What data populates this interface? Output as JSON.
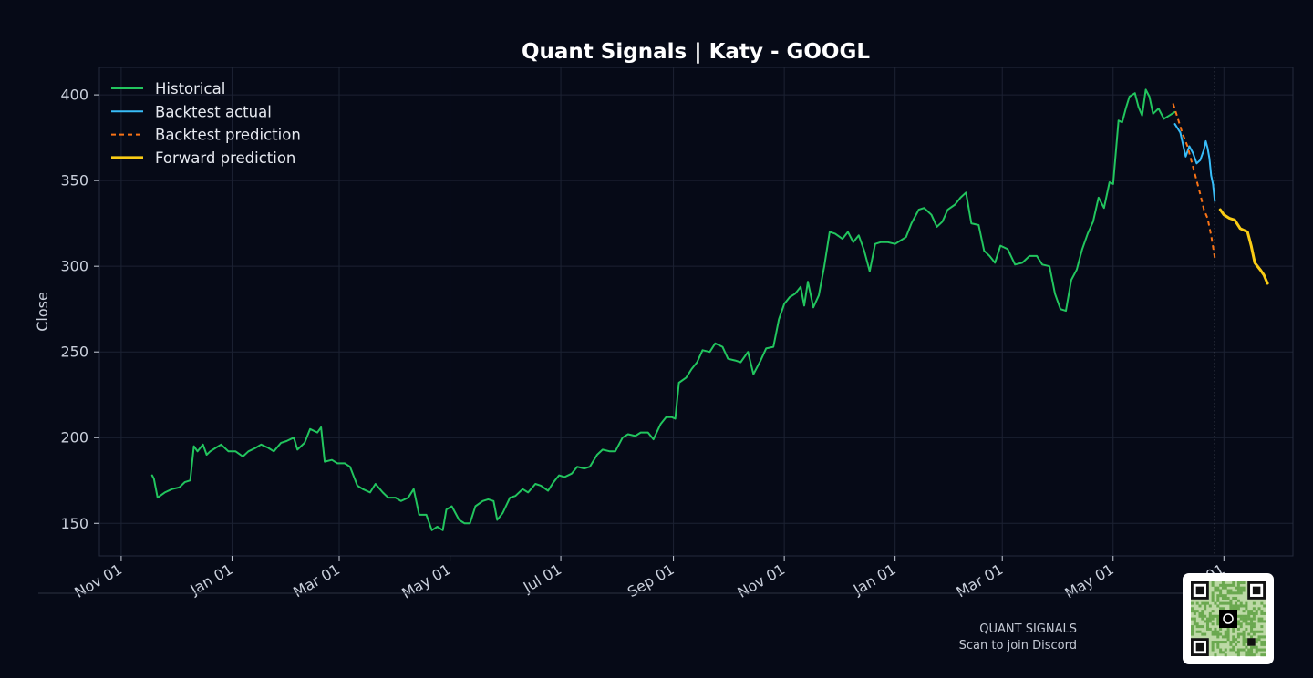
{
  "chart_data": {
    "type": "line",
    "title": "Quant Signals | Katy - GOOGL",
    "xlabel": "",
    "ylabel": "Close",
    "ylim": [
      131,
      416
    ],
    "xlim": [
      "2024-10-20",
      "2026-08-08"
    ],
    "yticks": [
      150,
      200,
      250,
      300,
      350,
      400
    ],
    "xticks": [
      {
        "date": "2024-11-01",
        "label": "Nov 01"
      },
      {
        "date": "2025-01-01",
        "label": "Jan 01"
      },
      {
        "date": "2025-03-01",
        "label": "Mar 01"
      },
      {
        "date": "2025-05-01",
        "label": "May 01"
      },
      {
        "date": "2025-07-01",
        "label": "Jul 01"
      },
      {
        "date": "2025-09-01",
        "label": "Sep 01"
      },
      {
        "date": "2025-11-01",
        "label": "Nov 01"
      },
      {
        "date": "2026-01-01",
        "label": "Jan 01"
      },
      {
        "date": "2026-03-01",
        "label": "Mar 01"
      },
      {
        "date": "2026-05-01",
        "label": "May 01"
      },
      {
        "date": "2026-07-01",
        "label": "Jul 01"
      }
    ],
    "grid": true,
    "legend_position": "top-left",
    "vline_date": "2026-06-26",
    "series": [
      {
        "name": "Historical",
        "color": "#22c55e",
        "style": "solid",
        "points": [
          [
            "2024-11-18",
            178
          ],
          [
            "2024-11-19",
            176
          ],
          [
            "2024-11-21",
            165
          ],
          [
            "2024-11-25",
            168
          ],
          [
            "2024-11-29",
            170
          ],
          [
            "2024-12-03",
            171
          ],
          [
            "2024-12-06",
            174
          ],
          [
            "2024-12-09",
            175
          ],
          [
            "2024-12-11",
            195
          ],
          [
            "2024-12-13",
            192
          ],
          [
            "2024-12-16",
            196
          ],
          [
            "2024-12-18",
            190
          ],
          [
            "2024-12-20",
            192
          ],
          [
            "2024-12-23",
            194
          ],
          [
            "2024-12-26",
            196
          ],
          [
            "2024-12-30",
            192
          ],
          [
            "2025-01-03",
            192
          ],
          [
            "2025-01-07",
            189
          ],
          [
            "2025-01-10",
            192
          ],
          [
            "2025-01-14",
            194
          ],
          [
            "2025-01-17",
            196
          ],
          [
            "2025-01-21",
            194
          ],
          [
            "2025-01-24",
            192
          ],
          [
            "2025-01-28",
            197
          ],
          [
            "2025-01-31",
            198
          ],
          [
            "2025-02-04",
            200
          ],
          [
            "2025-02-06",
            193
          ],
          [
            "2025-02-10",
            197
          ],
          [
            "2025-02-13",
            205
          ],
          [
            "2025-02-17",
            203
          ],
          [
            "2025-02-19",
            206
          ],
          [
            "2025-02-21",
            186
          ],
          [
            "2025-02-25",
            187
          ],
          [
            "2025-02-28",
            185
          ],
          [
            "2025-03-04",
            185
          ],
          [
            "2025-03-07",
            183
          ],
          [
            "2025-03-11",
            172
          ],
          [
            "2025-03-14",
            170
          ],
          [
            "2025-03-18",
            168
          ],
          [
            "2025-03-21",
            173
          ],
          [
            "2025-03-25",
            168
          ],
          [
            "2025-03-28",
            165
          ],
          [
            "2025-04-01",
            165
          ],
          [
            "2025-04-04",
            163
          ],
          [
            "2025-04-08",
            165
          ],
          [
            "2025-04-11",
            170
          ],
          [
            "2025-04-14",
            155
          ],
          [
            "2025-04-18",
            155
          ],
          [
            "2025-04-21",
            146
          ],
          [
            "2025-04-24",
            148
          ],
          [
            "2025-04-27",
            146
          ],
          [
            "2025-04-29",
            158
          ],
          [
            "2025-05-02",
            160
          ],
          [
            "2025-05-06",
            152
          ],
          [
            "2025-05-09",
            150
          ],
          [
            "2025-05-12",
            150
          ],
          [
            "2025-05-15",
            160
          ],
          [
            "2025-05-19",
            163
          ],
          [
            "2025-05-22",
            164
          ],
          [
            "2025-05-25",
            163
          ],
          [
            "2025-05-27",
            152
          ],
          [
            "2025-05-30",
            156
          ],
          [
            "2025-06-03",
            165
          ],
          [
            "2025-06-06",
            166
          ],
          [
            "2025-06-10",
            170
          ],
          [
            "2025-06-13",
            168
          ],
          [
            "2025-06-17",
            173
          ],
          [
            "2025-06-20",
            172
          ],
          [
            "2025-06-24",
            169
          ],
          [
            "2025-06-27",
            174
          ],
          [
            "2025-06-30",
            178
          ],
          [
            "2025-07-03",
            177
          ],
          [
            "2025-07-07",
            179
          ],
          [
            "2025-07-10",
            183
          ],
          [
            "2025-07-14",
            182
          ],
          [
            "2025-07-17",
            183
          ],
          [
            "2025-07-21",
            190
          ],
          [
            "2025-07-24",
            193
          ],
          [
            "2025-07-28",
            192
          ],
          [
            "2025-07-31",
            192
          ],
          [
            "2025-08-04",
            200
          ],
          [
            "2025-08-07",
            202
          ],
          [
            "2025-08-11",
            201
          ],
          [
            "2025-08-14",
            203
          ],
          [
            "2025-08-18",
            203
          ],
          [
            "2025-08-21",
            199
          ],
          [
            "2025-08-25",
            208
          ],
          [
            "2025-08-28",
            212
          ],
          [
            "2025-08-31",
            212
          ],
          [
            "2025-09-02",
            211
          ],
          [
            "2025-09-04",
            232
          ],
          [
            "2025-09-08",
            235
          ],
          [
            "2025-09-11",
            240
          ],
          [
            "2025-09-14",
            244
          ],
          [
            "2025-09-17",
            251
          ],
          [
            "2025-09-21",
            250
          ],
          [
            "2025-09-24",
            255
          ],
          [
            "2025-09-28",
            253
          ],
          [
            "2025-10-01",
            246
          ],
          [
            "2025-10-05",
            245
          ],
          [
            "2025-10-08",
            244
          ],
          [
            "2025-10-12",
            250
          ],
          [
            "2025-10-15",
            237
          ],
          [
            "2025-10-19",
            245
          ],
          [
            "2025-10-22",
            252
          ],
          [
            "2025-10-26",
            253
          ],
          [
            "2025-10-29",
            269
          ],
          [
            "2025-11-01",
            278
          ],
          [
            "2025-11-04",
            282
          ],
          [
            "2025-11-07",
            284
          ],
          [
            "2025-11-10",
            288
          ],
          [
            "2025-11-12",
            277
          ],
          [
            "2025-11-14",
            291
          ],
          [
            "2025-11-17",
            276
          ],
          [
            "2025-11-20",
            283
          ],
          [
            "2025-11-23",
            300
          ],
          [
            "2025-11-26",
            320
          ],
          [
            "2025-11-29",
            319
          ],
          [
            "2025-12-03",
            316
          ],
          [
            "2025-12-06",
            320
          ],
          [
            "2025-12-09",
            314
          ],
          [
            "2025-12-12",
            318
          ],
          [
            "2025-12-15",
            309
          ],
          [
            "2025-12-18",
            297
          ],
          [
            "2025-12-21",
            313
          ],
          [
            "2025-12-24",
            314
          ],
          [
            "2025-12-28",
            314
          ],
          [
            "2026-01-01",
            313
          ],
          [
            "2026-01-04",
            315
          ],
          [
            "2026-01-07",
            317
          ],
          [
            "2026-01-10",
            325
          ],
          [
            "2026-01-14",
            333
          ],
          [
            "2026-01-17",
            334
          ],
          [
            "2026-01-21",
            330
          ],
          [
            "2026-01-24",
            323
          ],
          [
            "2026-01-27",
            326
          ],
          [
            "2026-01-30",
            333
          ],
          [
            "2026-02-03",
            336
          ],
          [
            "2026-02-06",
            340
          ],
          [
            "2026-02-09",
            343
          ],
          [
            "2026-02-12",
            325
          ],
          [
            "2026-02-16",
            324
          ],
          [
            "2026-02-19",
            309
          ],
          [
            "2026-02-22",
            306
          ],
          [
            "2026-02-25",
            302
          ],
          [
            "2026-02-28",
            312
          ],
          [
            "2026-03-04",
            310
          ],
          [
            "2026-03-08",
            301
          ],
          [
            "2026-03-12",
            302
          ],
          [
            "2026-03-16",
            306
          ],
          [
            "2026-03-20",
            306
          ],
          [
            "2026-03-23",
            301
          ],
          [
            "2026-03-27",
            300
          ],
          [
            "2026-03-30",
            284
          ],
          [
            "2026-04-02",
            275
          ],
          [
            "2026-04-05",
            274
          ],
          [
            "2026-04-08",
            292
          ],
          [
            "2026-04-11",
            298
          ],
          [
            "2026-04-14",
            310
          ],
          [
            "2026-04-17",
            319
          ],
          [
            "2026-04-20",
            326
          ],
          [
            "2026-04-23",
            340
          ],
          [
            "2026-04-26",
            334
          ],
          [
            "2026-04-29",
            349
          ],
          [
            "2026-05-01",
            348
          ],
          [
            "2026-05-04",
            385
          ],
          [
            "2026-05-06",
            384
          ],
          [
            "2026-05-08",
            392
          ],
          [
            "2026-05-10",
            399
          ],
          [
            "2026-05-13",
            401
          ],
          [
            "2026-05-15",
            393
          ],
          [
            "2026-05-17",
            388
          ],
          [
            "2026-05-19",
            403
          ],
          [
            "2026-05-21",
            399
          ],
          [
            "2026-05-23",
            389
          ],
          [
            "2026-05-26",
            392
          ],
          [
            "2026-05-29",
            386
          ],
          [
            "2026-06-01",
            388
          ],
          [
            "2026-06-04",
            390
          ]
        ]
      },
      {
        "name": "Backtest actual",
        "color": "#38bdf8",
        "style": "solid",
        "points": [
          [
            "2026-06-04",
            383
          ],
          [
            "2026-06-07",
            378
          ],
          [
            "2026-06-10",
            364
          ],
          [
            "2026-06-12",
            370
          ],
          [
            "2026-06-14",
            366
          ],
          [
            "2026-06-16",
            360
          ],
          [
            "2026-06-18",
            362
          ],
          [
            "2026-06-20",
            368
          ],
          [
            "2026-06-21",
            373
          ],
          [
            "2026-06-22",
            369
          ],
          [
            "2026-06-23",
            363
          ],
          [
            "2026-06-24",
            353
          ],
          [
            "2026-06-25",
            348
          ],
          [
            "2026-06-26",
            338
          ]
        ]
      },
      {
        "name": "Backtest prediction",
        "color": "#f97316",
        "style": "dashed",
        "points": [
          [
            "2026-06-03",
            395
          ],
          [
            "2026-06-06",
            385
          ],
          [
            "2026-06-08",
            378
          ],
          [
            "2026-06-11",
            370
          ],
          [
            "2026-06-13",
            362
          ],
          [
            "2026-06-16",
            350
          ],
          [
            "2026-06-18",
            342
          ],
          [
            "2026-06-20",
            333
          ],
          [
            "2026-06-22",
            328
          ],
          [
            "2026-06-24",
            318
          ],
          [
            "2026-06-26",
            305
          ]
        ]
      },
      {
        "name": "Forward prediction",
        "color": "#facc15",
        "style": "solid",
        "points": [
          [
            "2026-06-29",
            333
          ],
          [
            "2026-07-01",
            330
          ],
          [
            "2026-07-04",
            328
          ],
          [
            "2026-07-07",
            327
          ],
          [
            "2026-07-10",
            322
          ],
          [
            "2026-07-14",
            320
          ],
          [
            "2026-07-16",
            312
          ],
          [
            "2026-07-18",
            302
          ],
          [
            "2026-07-21",
            298
          ],
          [
            "2026-07-23",
            295
          ],
          [
            "2026-07-25",
            290
          ]
        ]
      }
    ]
  },
  "footer": {
    "brand": "QUANT SIGNALS",
    "cta": "Scan to join Discord"
  }
}
